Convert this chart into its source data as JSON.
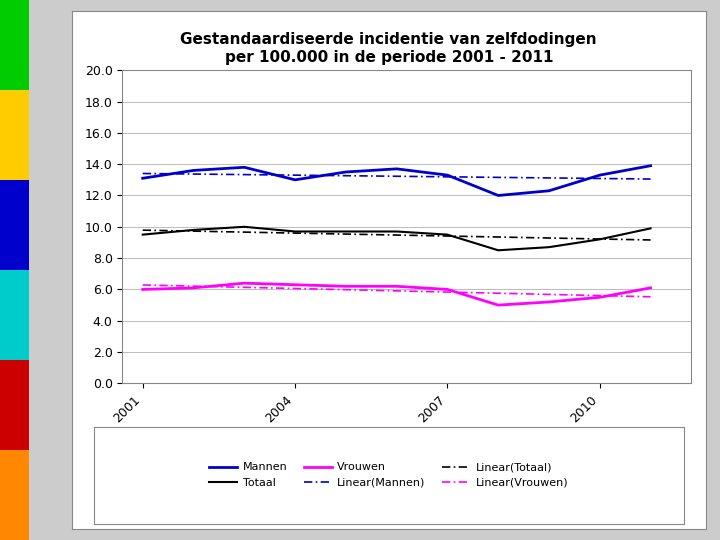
{
  "title": "Gestandaardiseerde incidentie van zelfdodingen\nper 100.000 in de periode 2001 - 2011",
  "years": [
    2001,
    2002,
    2003,
    2004,
    2005,
    2006,
    2007,
    2008,
    2009,
    2010,
    2011
  ],
  "mannen": [
    13.1,
    13.6,
    13.8,
    13.0,
    13.5,
    13.7,
    13.3,
    12.0,
    12.3,
    13.3,
    13.9
  ],
  "totaal": [
    9.5,
    9.8,
    10.0,
    9.7,
    9.7,
    9.7,
    9.5,
    8.5,
    8.7,
    9.2,
    9.9
  ],
  "vrouwen": [
    6.0,
    6.1,
    6.4,
    6.3,
    6.2,
    6.2,
    6.0,
    5.0,
    5.2,
    5.5,
    6.1
  ],
  "color_mannen": "#0000CC",
  "color_totaal": "#000000",
  "color_vrouwen": "#FF00FF",
  "ylim": [
    0.0,
    20.0
  ],
  "yticks": [
    0.0,
    2.0,
    4.0,
    6.0,
    8.0,
    10.0,
    12.0,
    14.0,
    16.0,
    18.0,
    20.0
  ],
  "xticks": [
    2001,
    2004,
    2007,
    2010
  ],
  "title_fontsize": 11,
  "axis_fontsize": 9,
  "legend_fontsize": 8,
  "background_color": "#FFFFFF",
  "figure_background": "#CCCCCC",
  "left_bar_colors": [
    "#FF8800",
    "#CC0000",
    "#00CCCC",
    "#0000CC",
    "#FFCC00",
    "#00CC00"
  ],
  "chart_box_color": "#888888"
}
